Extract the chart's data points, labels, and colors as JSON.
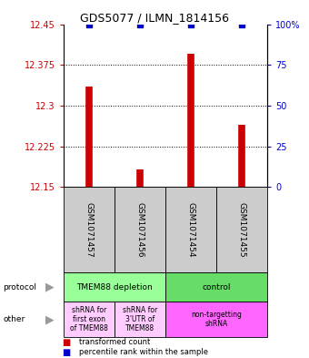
{
  "title": "GDS5077 / ILMN_1814156",
  "samples": [
    "GSM1071457",
    "GSM1071456",
    "GSM1071454",
    "GSM1071455"
  ],
  "bar_values": [
    12.335,
    12.183,
    12.395,
    12.265
  ],
  "bar_base": 12.15,
  "ylim": [
    12.15,
    12.45
  ],
  "yticks": [
    12.15,
    12.225,
    12.3,
    12.375,
    12.45
  ],
  "ytick_labels": [
    "12.15",
    "12.225",
    "12.3",
    "12.375",
    "12.45"
  ],
  "right_yticks": [
    0,
    25,
    50,
    75,
    100
  ],
  "right_ytick_labels": [
    "0",
    "25",
    "50",
    "75",
    "100%"
  ],
  "bar_color": "#cc0000",
  "percentile_color": "#0000cc",
  "bg_color": "#ffffff",
  "protocol_labels": [
    "TMEM88 depletion",
    "control"
  ],
  "protocol_colors": [
    "#99ff99",
    "#66dd66"
  ],
  "other_labels": [
    "shRNA for\nfirst exon\nof TMEM88",
    "shRNA for\n3'UTR of\nTMEM88",
    "non-targetting\nshRNA"
  ],
  "other_colors_left": [
    "#ffccff",
    "#ffccff"
  ],
  "other_color_right": "#ff66ff",
  "sample_box_color": "#cccccc",
  "left_label_color": "#cc0000",
  "right_label_color": "#0000cc",
  "arrow_color": "#999999"
}
